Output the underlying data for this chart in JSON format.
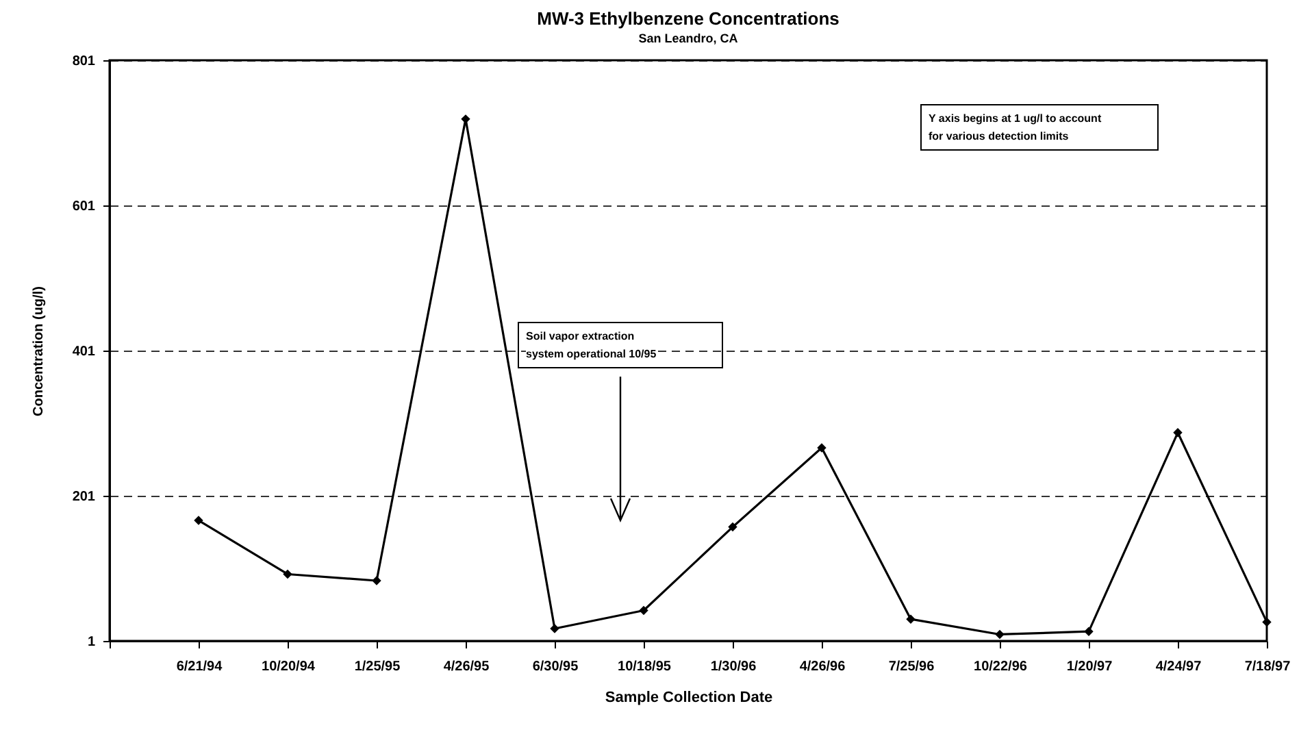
{
  "chart_data": {
    "type": "line",
    "title": "MW-3 Ethylbenzene Concentrations",
    "subtitle": "San Leandro, CA",
    "xlabel": "Sample Collection Date",
    "ylabel": "Concentration (ug/l)",
    "categories": [
      null,
      "6/21/94",
      "10/20/94",
      "1/25/95",
      "4/26/95",
      "6/30/95",
      "10/18/95",
      "1/30/96",
      "4/26/96",
      "7/25/96",
      "10/22/96",
      "1/20/97",
      "4/24/97",
      "7/18/97"
    ],
    "series": [
      {
        "color": "#000000",
        "values": [
          null,
          167,
          93,
          84,
          720,
          18,
          43,
          158,
          267,
          31,
          10,
          14,
          288,
          27
        ]
      }
    ],
    "ylim": [
      1,
      801
    ],
    "yticks": [
      1,
      201,
      401,
      601,
      801
    ],
    "grid": "y",
    "marker": "diamond",
    "line_style": "solid",
    "legend": false,
    "annotations": [
      "Soil vapor extraction\nsystem operational 10/95",
      "Y axis begins at 1 ug/l to account\nfor various detection limits"
    ]
  }
}
